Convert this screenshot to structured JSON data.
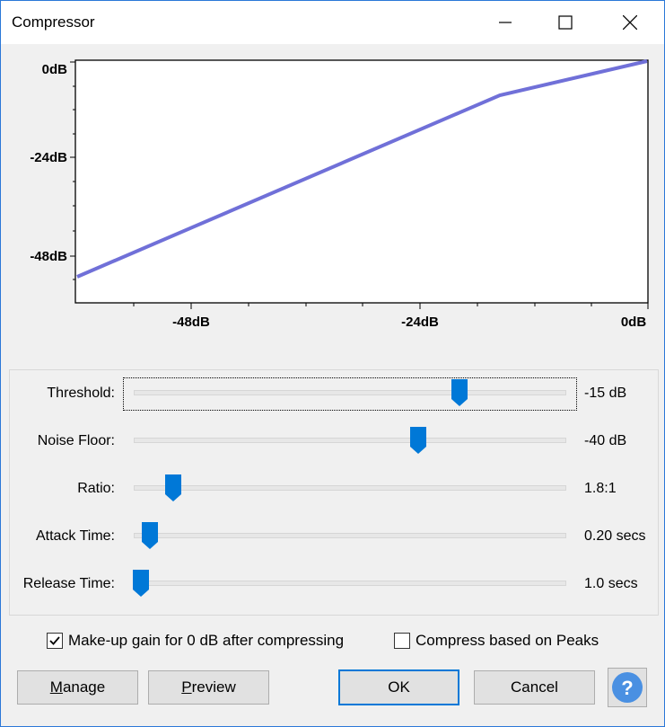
{
  "window": {
    "title": "Compressor"
  },
  "graph": {
    "y_ticks": [
      "0dB",
      "-24dB",
      "-48dB"
    ],
    "x_ticks": [
      "-48dB",
      "-24dB",
      "0dB"
    ],
    "line_color": "#7070d8"
  },
  "controls": [
    {
      "label": "Threshold:",
      "value": "-15 dB",
      "position": 0.757
    },
    {
      "label": "Noise Floor:",
      "value": "-40 dB",
      "position": 0.661
    },
    {
      "label": "Ratio:",
      "value": "1.8:1",
      "position": 0.092
    },
    {
      "label": "Attack Time:",
      "value": "0.20 secs",
      "position": 0.037
    },
    {
      "label": "Release Time:",
      "value": "1.0 secs",
      "position": 0.016
    }
  ],
  "options": {
    "makeup_gain": {
      "label": "Make-up gain for 0 dB after compressing",
      "checked": true
    },
    "peaks": {
      "label": "Compress based on Peaks",
      "checked": false
    }
  },
  "buttons": {
    "manage": "Manage",
    "preview": "Preview",
    "ok": "OK",
    "cancel": "Cancel"
  },
  "colors": {
    "thumb": "#0078d7",
    "help_circle": "#4a90e2"
  }
}
